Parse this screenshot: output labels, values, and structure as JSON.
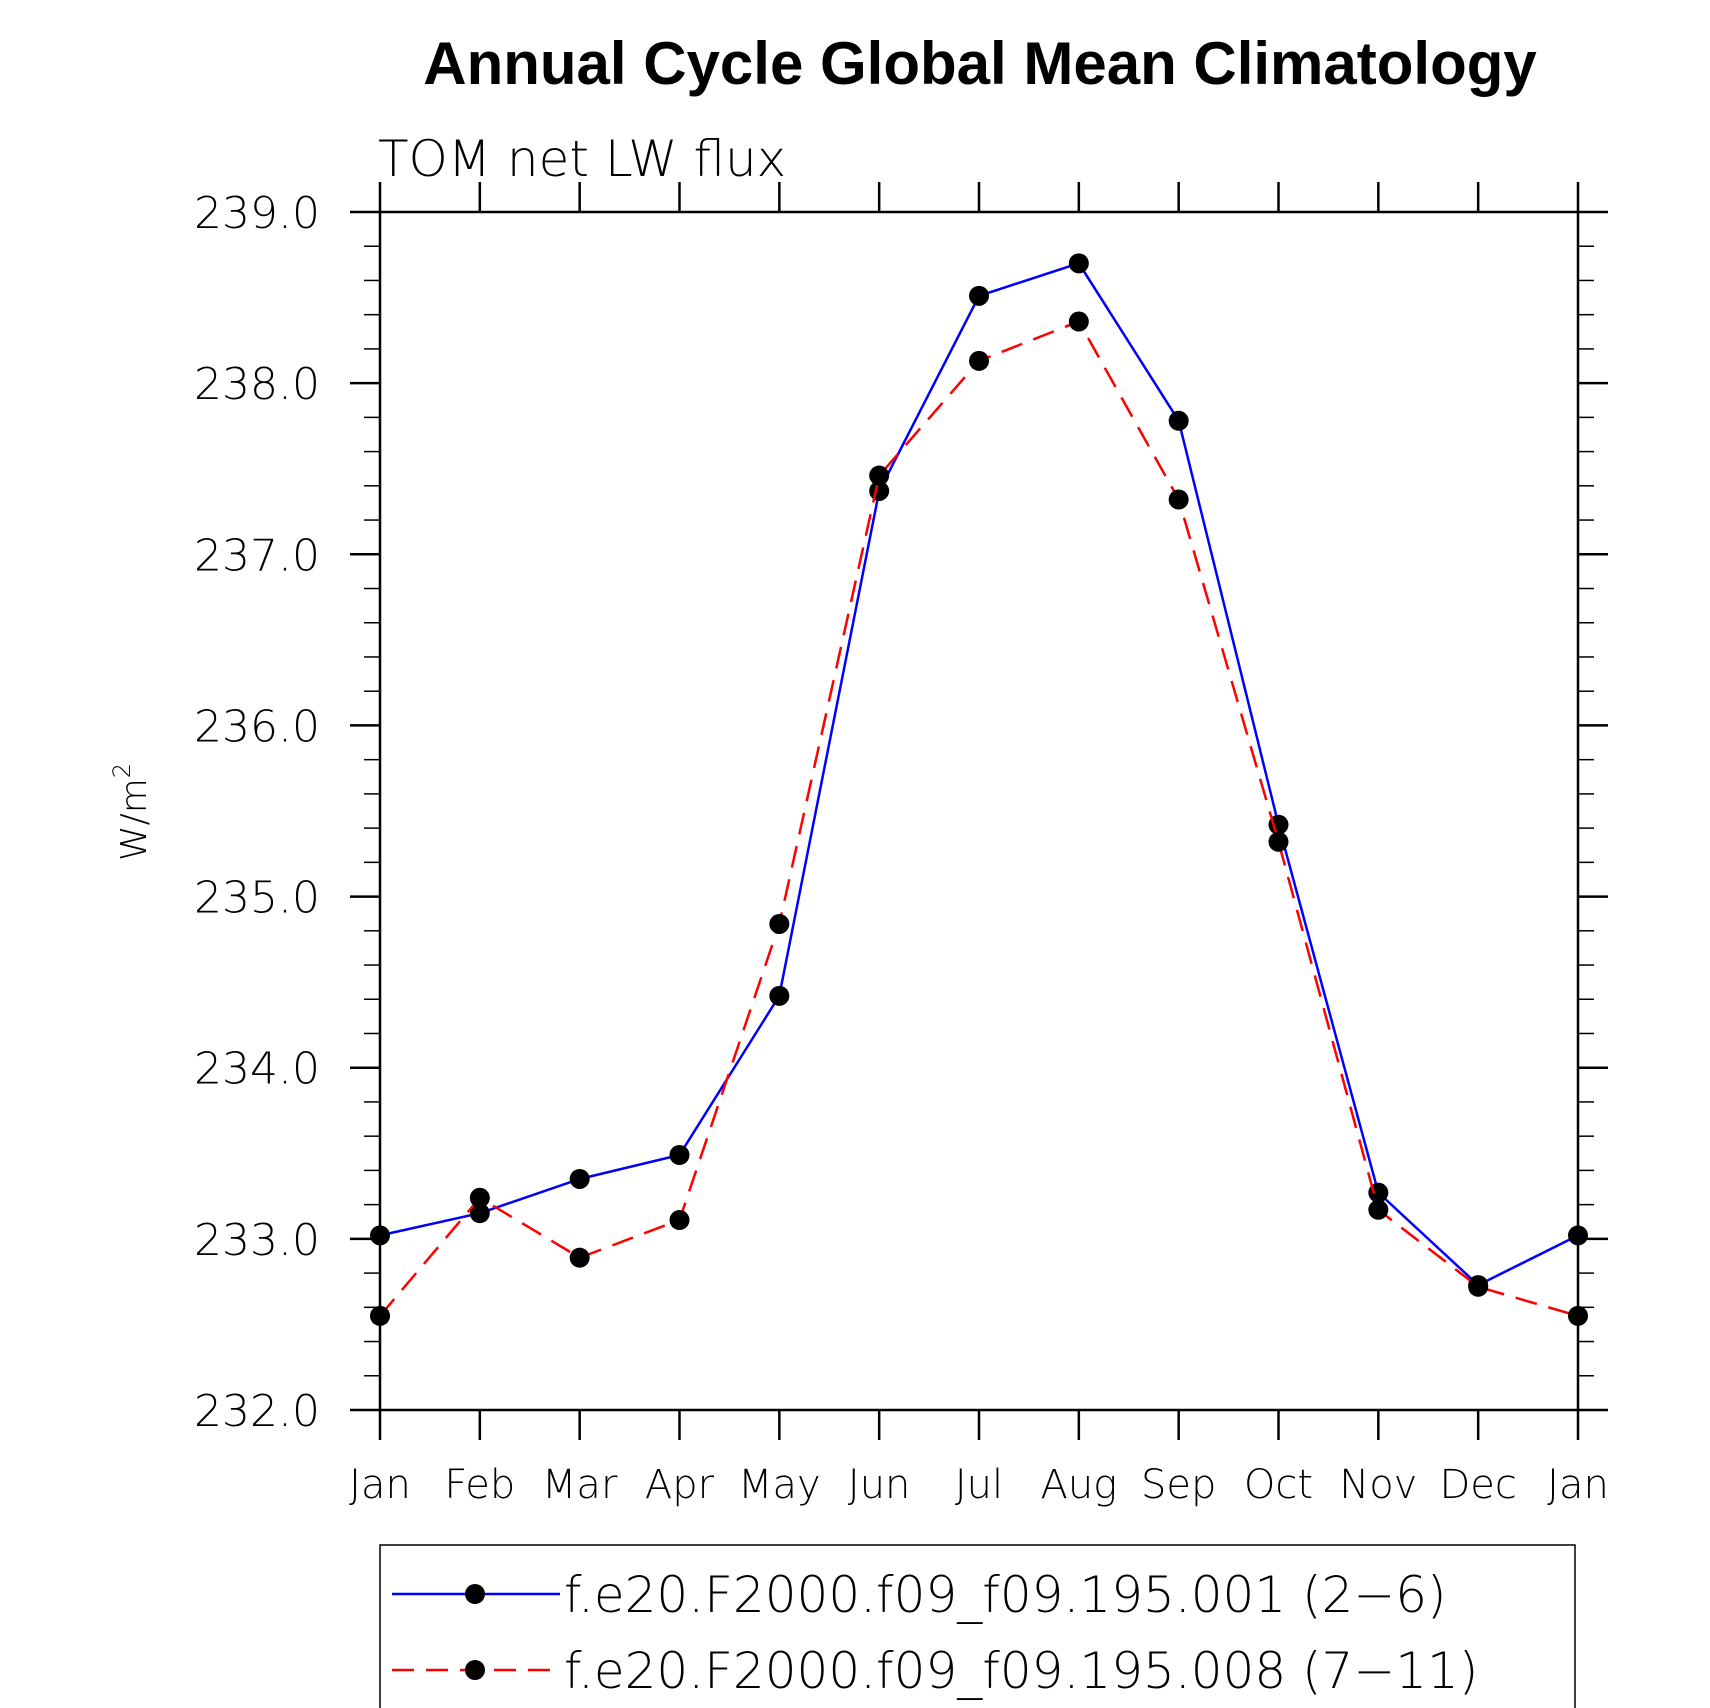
{
  "chart_data": {
    "type": "line",
    "title": "Annual Cycle Global Mean Climatology",
    "subtitle": "TOM net LW flux",
    "ylabel": "W/m",
    "ylabel_superscript": "2",
    "xlabel": "",
    "categories": [
      "Jan",
      "Feb",
      "Mar",
      "Apr",
      "May",
      "Jun",
      "Jul",
      "Aug",
      "Sep",
      "Oct",
      "Nov",
      "Dec",
      "Jan"
    ],
    "ylim": [
      232.0,
      239.0
    ],
    "yticks": [
      232.0,
      233.0,
      234.0,
      235.0,
      236.0,
      237.0,
      238.0,
      239.0
    ],
    "ytick_labels": [
      "232.0",
      "233.0",
      "234.0",
      "235.0",
      "236.0",
      "237.0",
      "238.0",
      "239.0"
    ],
    "grid": false,
    "legend_position": "bottom",
    "series": [
      {
        "name": "f.e20.F2000.f09_f09.195.001 (2−6)",
        "color": "#0000ff",
        "line_style": "solid",
        "marker": "filled-circle",
        "values": [
          233.02,
          233.15,
          233.35,
          233.49,
          234.42,
          237.37,
          238.51,
          238.7,
          237.78,
          235.42,
          233.27,
          232.73,
          233.02
        ]
      },
      {
        "name": "f.e20.F2000.f09_f09.195.008 (7−11)",
        "color": "#ff0000",
        "line_style": "dashed",
        "marker": "filled-circle",
        "values": [
          232.55,
          233.24,
          232.89,
          233.11,
          234.84,
          237.46,
          238.13,
          238.36,
          237.32,
          235.32,
          233.17,
          232.72,
          232.55
        ]
      }
    ]
  }
}
